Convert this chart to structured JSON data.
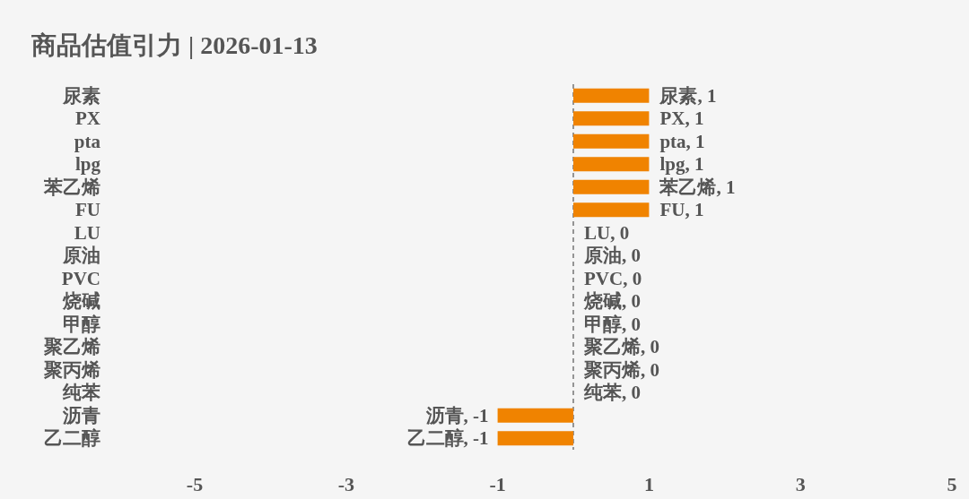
{
  "chart_data": {
    "type": "bar",
    "title": "商品估值引力 | 2026-01-13",
    "orientation": "horizontal",
    "categories": [
      "尿素",
      "PX",
      "pta",
      "lpg",
      "苯乙烯",
      "FU",
      "LU",
      "原油",
      "PVC",
      "烧碱",
      "甲醇",
      "聚乙烯",
      "聚丙烯",
      "纯苯",
      "沥青",
      "乙二醇"
    ],
    "values": [
      1,
      1,
      1,
      1,
      1,
      1,
      0,
      0,
      0,
      0,
      0,
      0,
      0,
      0,
      -1,
      -1
    ],
    "value_labels": [
      "尿素, 1",
      "PX, 1",
      "pta, 1",
      "lpg, 1",
      "苯乙烯, 1",
      "FU, 1",
      "LU, 0",
      "原油, 0",
      "PVC, 0",
      "烧碱, 0",
      "甲醇, 0",
      "聚乙烯, 0",
      "聚丙烯, 0",
      "纯苯, 0",
      "沥青, -1",
      "乙二醇, -1"
    ],
    "color": "#f08300",
    "xlim": [
      -5,
      5
    ],
    "xticks": [
      -5,
      -3,
      -1,
      1,
      3,
      5
    ],
    "ref_lines": [
      {
        "axis": "x",
        "value": 0,
        "color": "#555555",
        "line_style": "dashed"
      }
    ]
  }
}
